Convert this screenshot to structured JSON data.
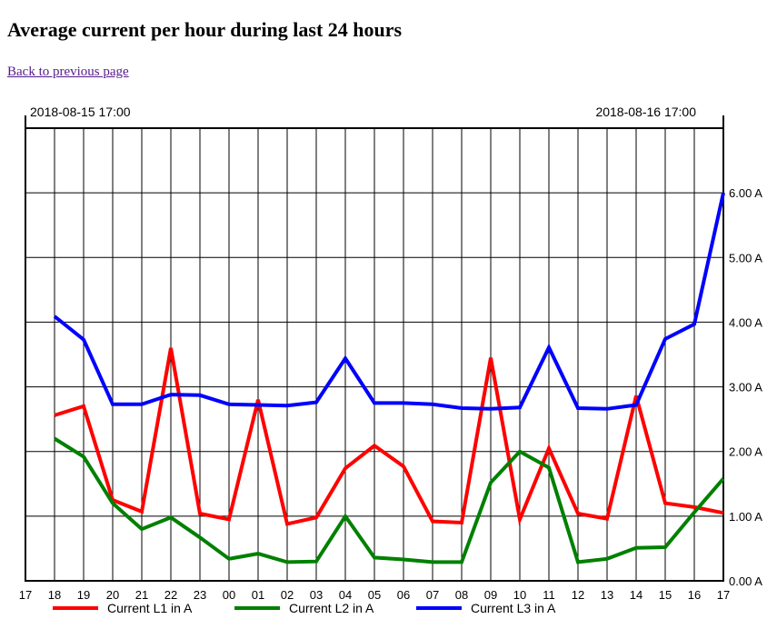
{
  "page": {
    "title": "Average current per hour during last 24 hours",
    "back_link": "Back to previous page"
  },
  "chart_data": {
    "type": "line",
    "title": "",
    "start_label": "2018-08-15 17:00",
    "end_label": "2018-08-16 17:00",
    "x_ticks": [
      "17",
      "18",
      "19",
      "20",
      "21",
      "22",
      "23",
      "00",
      "01",
      "02",
      "03",
      "04",
      "05",
      "06",
      "07",
      "08",
      "09",
      "10",
      "11",
      "12",
      "13",
      "14",
      "15",
      "16",
      "17"
    ],
    "categories": [
      "18",
      "19",
      "20",
      "21",
      "22",
      "23",
      "00",
      "01",
      "02",
      "03",
      "04",
      "05",
      "06",
      "07",
      "08",
      "09",
      "10",
      "11",
      "12",
      "13",
      "14",
      "15",
      "16",
      "17"
    ],
    "y_ticks": [
      "0.00 A",
      "1.00 A",
      "2.00 A",
      "3.00 A",
      "4.00 A",
      "5.00 A",
      "6.00 A"
    ],
    "ylim": [
      0,
      7
    ],
    "grid": true,
    "legend_position": "bottom",
    "series": [
      {
        "name": "Current L1 in A",
        "color": "#ff0000",
        "values": [
          2.56,
          2.7,
          1.25,
          1.07,
          3.6,
          1.04,
          0.95,
          2.8,
          0.88,
          0.98,
          1.74,
          2.09,
          1.77,
          0.92,
          0.9,
          3.45,
          0.95,
          2.05,
          1.04,
          0.96,
          2.86,
          1.2,
          1.14,
          1.05
        ]
      },
      {
        "name": "Current L2 in A",
        "color": "#008000",
        "values": [
          2.2,
          1.92,
          1.2,
          0.8,
          0.98,
          0.67,
          0.34,
          0.42,
          0.29,
          0.3,
          1.0,
          0.36,
          0.33,
          0.29,
          0.29,
          1.52,
          2.0,
          1.75,
          0.29,
          0.34,
          0.51,
          0.52,
          1.06,
          1.58
        ]
      },
      {
        "name": "Current L3 in A",
        "color": "#0000ff",
        "values": [
          4.09,
          3.73,
          2.73,
          2.73,
          2.88,
          2.87,
          2.73,
          2.72,
          2.71,
          2.76,
          3.44,
          2.75,
          2.75,
          2.73,
          2.67,
          2.66,
          2.68,
          3.61,
          2.67,
          2.66,
          2.72,
          3.74,
          3.97,
          6.0
        ]
      }
    ]
  }
}
